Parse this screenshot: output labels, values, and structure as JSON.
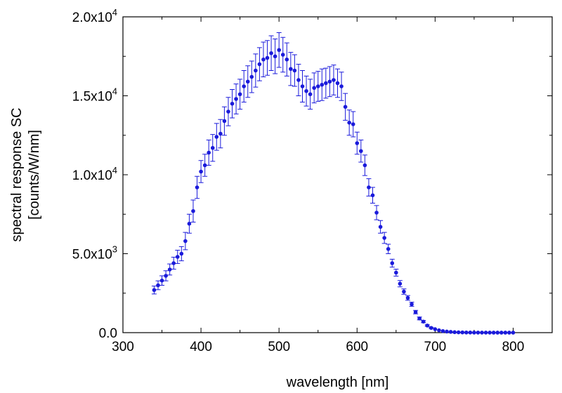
{
  "chart_data": {
    "type": "scatter",
    "title": "",
    "xlabel": "wavelength [nm]",
    "ylabel_lines": [
      "spectral response SC",
      "[counts/W/nm]"
    ],
    "xlim": [
      300,
      850
    ],
    "ylim": [
      0,
      20000
    ],
    "x_ticks": [
      300,
      400,
      500,
      600,
      700,
      800
    ],
    "x_tick_labels": [
      "300",
      "400",
      "500",
      "600",
      "700",
      "800"
    ],
    "y_ticks": [
      0,
      5000,
      10000,
      15000,
      20000
    ],
    "y_tick_labels": [
      {
        "mantissa": "0.0",
        "exp": ""
      },
      {
        "mantissa": "5.0x10",
        "exp": "3"
      },
      {
        "mantissa": "1.0x10",
        "exp": "4"
      },
      {
        "mantissa": "1.5x10",
        "exp": "4"
      },
      {
        "mantissa": "2.0x10",
        "exp": "4"
      }
    ],
    "grid": false,
    "marker_color": "#1a1adb",
    "errorbar_color": "#1a1adb",
    "series": [
      {
        "x": [
          340,
          345,
          350,
          355,
          360,
          365,
          370,
          375,
          380,
          385,
          390,
          395,
          400,
          405,
          410,
          415,
          420,
          425,
          430,
          435,
          440,
          445,
          450,
          455,
          460,
          465,
          470,
          475,
          480,
          485,
          490,
          495,
          500,
          505,
          510,
          515,
          520,
          525,
          530,
          535,
          540,
          545,
          550,
          555,
          560,
          565,
          570,
          575,
          580,
          585,
          590,
          595,
          600,
          605,
          610,
          615,
          620,
          625,
          630,
          635,
          640,
          645,
          650,
          655,
          660,
          665,
          670,
          675,
          680,
          685,
          690,
          695,
          700,
          705,
          710,
          715,
          720,
          725,
          730,
          735,
          740,
          745,
          750,
          755,
          760,
          765,
          770,
          775,
          780,
          785,
          790,
          795,
          800
        ],
        "y": [
          2700,
          3000,
          3300,
          3600,
          4000,
          4400,
          4800,
          5000,
          5800,
          6900,
          7700,
          9200,
          10200,
          10600,
          11400,
          11700,
          12400,
          12600,
          13400,
          14000,
          14500,
          14800,
          15100,
          15600,
          15900,
          16200,
          16600,
          17000,
          17300,
          17400,
          17700,
          17500,
          17900,
          17600,
          17300,
          16700,
          16600,
          16000,
          15600,
          15300,
          15100,
          15500,
          15600,
          15700,
          15800,
          15900,
          16000,
          15800,
          15600,
          14300,
          13300,
          13200,
          12000,
          11500,
          10600,
          9200,
          8700,
          7600,
          6700,
          6000,
          5300,
          4400,
          3800,
          3100,
          2600,
          2200,
          1800,
          1300,
          900,
          700,
          450,
          300,
          220,
          150,
          100,
          70,
          50,
          30,
          20,
          15,
          10,
          8,
          5,
          4,
          3,
          2,
          2,
          1,
          1,
          1,
          1,
          1,
          1
        ],
        "err": [
          250,
          280,
          300,
          320,
          350,
          380,
          420,
          450,
          550,
          600,
          700,
          700,
          700,
          700,
          800,
          850,
          850,
          900,
          900,
          900,
          900,
          950,
          950,
          1000,
          1000,
          1000,
          1050,
          1050,
          1100,
          1100,
          1100,
          1100,
          1100,
          1100,
          1050,
          1050,
          1000,
          1000,
          1000,
          950,
          950,
          950,
          950,
          1000,
          950,
          950,
          950,
          900,
          900,
          850,
          800,
          800,
          700,
          700,
          650,
          550,
          500,
          450,
          400,
          350,
          300,
          250,
          220,
          200,
          170,
          150,
          130,
          110,
          90,
          70,
          50,
          40,
          30,
          20,
          15,
          10,
          8,
          6,
          5,
          4,
          3,
          2,
          2,
          1,
          1,
          1,
          1,
          1,
          1,
          1,
          1,
          1,
          1
        ]
      }
    ]
  }
}
